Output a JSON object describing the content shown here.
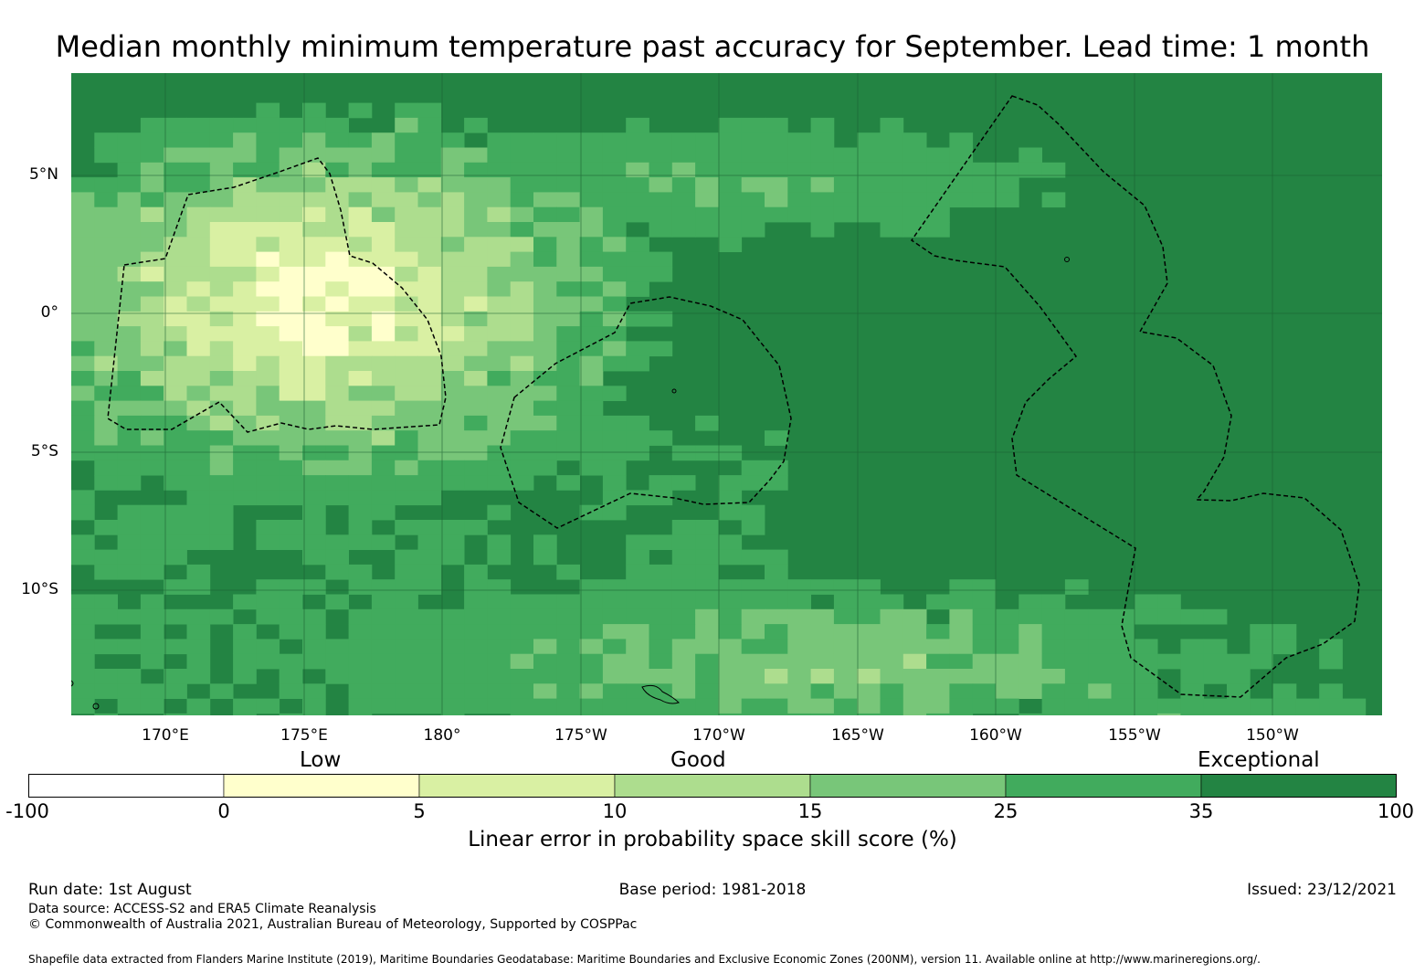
{
  "title": "Median monthly minimum temperature past accuracy for September. Lead time: 1 month",
  "map": {
    "lat_labels": [
      "5°N",
      "0°",
      "5°S",
      "10°S"
    ],
    "lon_labels": [
      "170°E",
      "175°E",
      "180°",
      "175°W",
      "170°W",
      "165°W",
      "160°W",
      "155°W",
      "150°W"
    ],
    "background_color": "#238443"
  },
  "legend": {
    "categories": [
      "Low",
      "Good",
      "Exceptional"
    ],
    "ticks": [
      "-100",
      "0",
      "5",
      "10",
      "15",
      "25",
      "35",
      "100"
    ],
    "colors": [
      "#ffffff",
      "#ffffcc",
      "#d9f0a3",
      "#addd8e",
      "#78c679",
      "#41ab5d",
      "#238443"
    ],
    "label": "Linear error in probability space skill score (%)"
  },
  "footer": {
    "run_date": "Run date: 1st August",
    "base_period": "Base period: 1981-2018",
    "issued": "Issued: 23/12/2021",
    "data_source": "Data source: ACCESS-S2 and ERA5 Climate Reanalysis",
    "copyright": "© Commonwealth of Australia 2021, Australian Bureau of Meteorology, Supported by COSPPac",
    "shapefile": "Shapefile data extracted from Flanders Marine Institute (2019), Maritime Boundaries Geodatabase: Maritime Boundaries and Exclusive Economic Zones (200NM), version 11. Available online at http://www.marineregions.org/."
  }
}
